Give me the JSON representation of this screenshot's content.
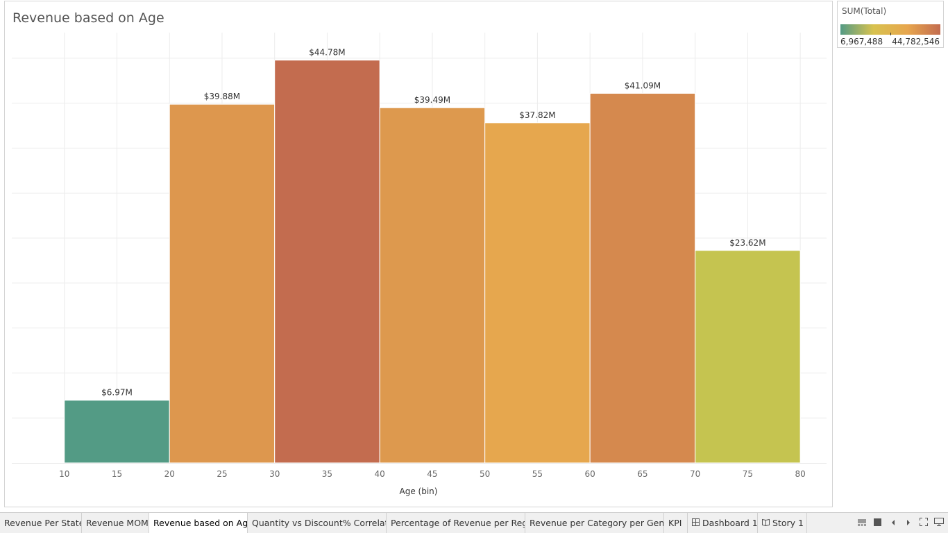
{
  "worksheet": {
    "title": "Revenue based on Age"
  },
  "chart_data": {
    "type": "bar",
    "bins": [
      {
        "start": 10,
        "end": 20,
        "value": 6967488,
        "label": "$6.97M",
        "color": "#539b85"
      },
      {
        "start": 20,
        "end": 30,
        "value": 39880000,
        "label": "$39.88M",
        "color": "#dd974e"
      },
      {
        "start": 30,
        "end": 40,
        "value": 44782546,
        "label": "$44.78M",
        "color": "#c36c4f"
      },
      {
        "start": 40,
        "end": 50,
        "value": 39490000,
        "label": "$39.49M",
        "color": "#dd994e"
      },
      {
        "start": 50,
        "end": 60,
        "value": 37820000,
        "label": "$37.82M",
        "color": "#e6a74e"
      },
      {
        "start": 60,
        "end": 70,
        "value": 41090000,
        "label": "$41.09M",
        "color": "#d5894e"
      },
      {
        "start": 70,
        "end": 80,
        "value": 23620000,
        "label": "$23.62M",
        "color": "#c5c450"
      }
    ],
    "x_ticks": [
      10,
      15,
      20,
      25,
      30,
      35,
      40,
      45,
      50,
      55,
      60,
      65,
      70,
      75,
      80
    ],
    "xlim": [
      5,
      82.5
    ],
    "ylim": [
      0,
      49000000
    ],
    "xlabel": "Age (bin)",
    "ylabel": "",
    "grid": true
  },
  "legend": {
    "title": "SUM(Total)",
    "min_label": "6,967,488",
    "max_label": "44,782,546",
    "colors": [
      "#539b85",
      "#d8c24f",
      "#e7a64e",
      "#c36c4f"
    ]
  },
  "tabs": [
    {
      "label": "Revenue Per State",
      "icon": ""
    },
    {
      "label": "Revenue MOM",
      "icon": ""
    },
    {
      "label": "Revenue based on Age",
      "icon": "",
      "active": true
    },
    {
      "label": "Quantity vs Discount% Correlati...",
      "icon": ""
    },
    {
      "label": "Percentage of Revenue per Regi...",
      "icon": ""
    },
    {
      "label": "Revenue per Category per Gender",
      "icon": ""
    },
    {
      "label": "KPI",
      "icon": ""
    },
    {
      "label": "Dashboard 1",
      "icon": "dashboard-icon"
    },
    {
      "label": "Story 1",
      "icon": "story-icon"
    }
  ],
  "nav_icons": [
    "show-filmstrip-icon",
    "show-tabs-icon",
    "previous-sheet-icon",
    "next-sheet-icon",
    "presentation-mode-icon",
    "new-sheet-icon"
  ]
}
